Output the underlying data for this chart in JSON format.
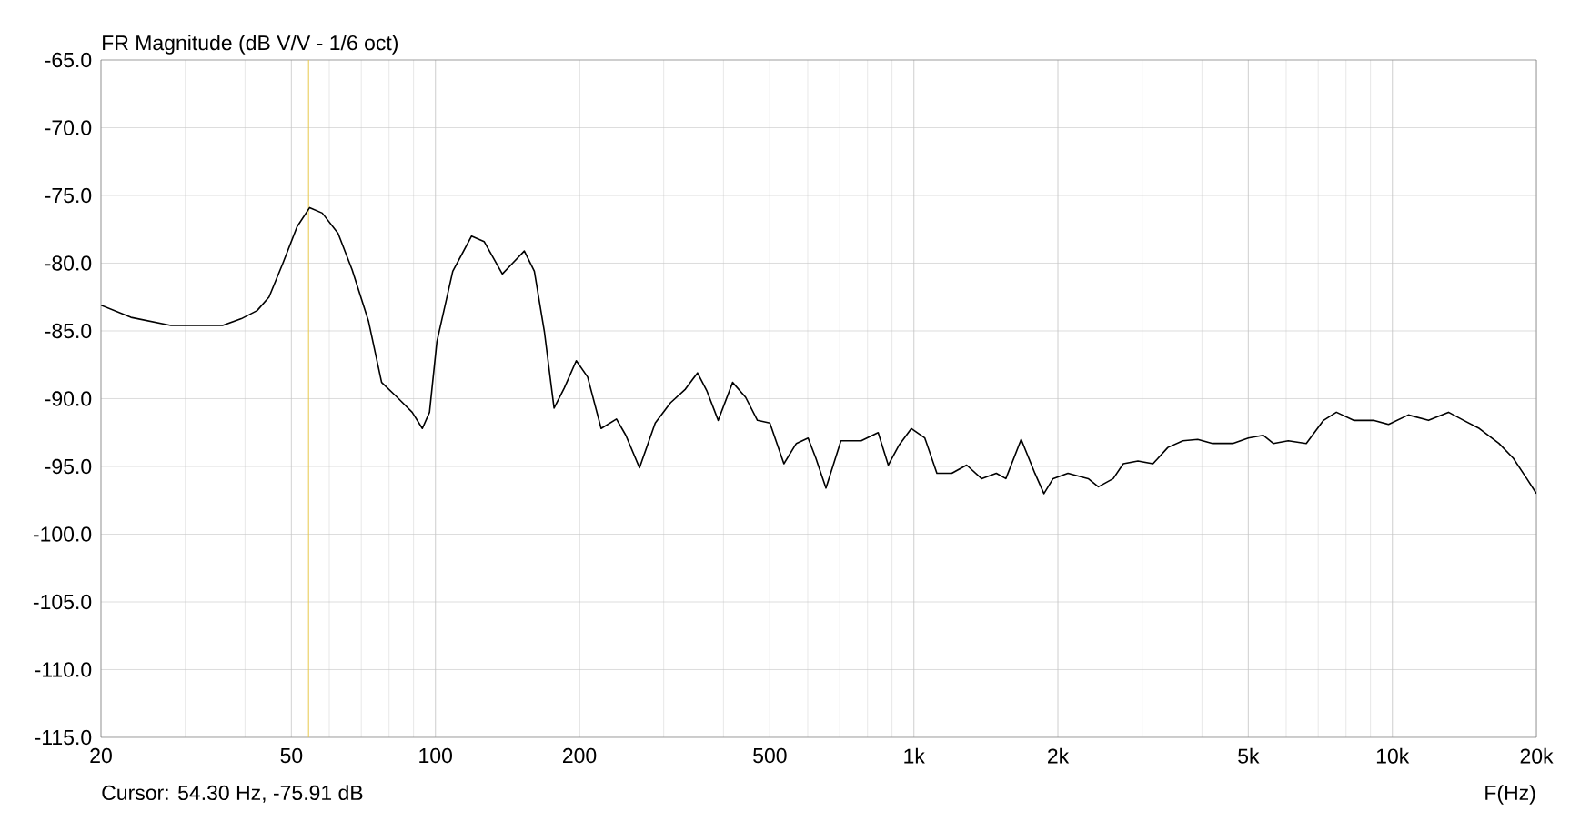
{
  "chart_data": {
    "type": "line",
    "title": "FR Magnitude (dB V/V - 1/6 oct)",
    "xlabel": "F(Hz)",
    "annotations": [
      "Cursor: 54.30 Hz, -75.91 dB"
    ],
    "log": "x",
    "grid": true,
    "xlim": [
      20,
      20000
    ],
    "ylim": [
      -115,
      -65
    ],
    "xticks": [
      20,
      50,
      100,
      200,
      500,
      {
        "value": 1000,
        "label": "1k"
      },
      {
        "value": 2000,
        "label": "2k"
      },
      {
        "value": 5000,
        "label": "5k"
      },
      {
        "value": 10000,
        "label": "10k"
      },
      {
        "value": 20000,
        "label": "20k"
      }
    ],
    "yticks": [
      {
        "value": -65,
        "label": "-65.0"
      },
      {
        "value": -70,
        "label": "-70.0"
      },
      {
        "value": -75,
        "label": "-75.0"
      },
      {
        "value": -80,
        "label": "-80.0"
      },
      {
        "value": -85,
        "label": "-85.0"
      },
      {
        "value": -90,
        "label": "-90.0"
      },
      {
        "value": -95,
        "label": "-95.0"
      },
      {
        "value": -100,
        "label": "-100.0"
      },
      {
        "value": -105,
        "label": "-105.0"
      },
      {
        "value": -110,
        "label": "-110.0"
      },
      {
        "value": -115,
        "label": "-115.0"
      }
    ],
    "ref_lines": [
      {
        "axis": "x",
        "value": 54.3,
        "color": "#e8c84a"
      }
    ],
    "x": [
      20,
      23.1,
      28,
      35.9,
      39.3,
      42.4,
      44.9,
      48,
      51.4,
      54.6,
      58,
      62.6,
      67,
      72.5,
      77.2,
      83.2,
      89.4,
      93.9,
      97.2,
      100.7,
      108.7,
      119,
      126.4,
      138,
      145,
      153.4,
      161,
      169,
      177,
      186,
      197,
      208,
      222,
      239,
      250,
      267,
      288,
      310,
      333,
      353,
      369,
      390,
      418,
      445,
      471,
      500,
      535,
      568,
      601,
      624,
      655,
      704,
      776,
      842,
      884,
      932,
      988,
      1054,
      1117,
      1200,
      1289,
      1385,
      1487,
      1557,
      1676,
      1790,
      1870,
      1954,
      2099,
      2314,
      2430,
      2610,
      2740,
      2940,
      3160,
      3395,
      3650,
      3920,
      4210,
      4640,
      5000,
      5370,
      5640,
      6060,
      6610,
      7180,
      7640,
      8300,
      9130,
      9820,
      10800,
      11900,
      13100,
      14100,
      15200,
      16700,
      17900,
      19100,
      20000
    ],
    "series": [
      {
        "color": "#000000",
        "values": [
          -83.1,
          -84.0,
          -84.6,
          -84.6,
          -84.1,
          -83.5,
          -82.5,
          -80.0,
          -77.3,
          -75.9,
          -76.3,
          -77.8,
          -80.5,
          -84.3,
          -88.8,
          -89.9,
          -91.0,
          -92.2,
          -91.0,
          -85.8,
          -80.6,
          -78.0,
          -78.4,
          -80.8,
          -80.0,
          -79.1,
          -80.6,
          -85.1,
          -90.7,
          -89.2,
          -87.2,
          -88.4,
          -92.2,
          -91.5,
          -92.7,
          -95.1,
          -91.8,
          -90.3,
          -89.3,
          -88.1,
          -89.4,
          -91.6,
          -88.8,
          -89.9,
          -91.6,
          -91.8,
          -94.8,
          -93.3,
          -92.9,
          -94.4,
          -96.6,
          -93.1,
          -93.1,
          -92.5,
          -94.9,
          -93.4,
          -92.2,
          -92.9,
          -95.5,
          -95.5,
          -94.9,
          -95.9,
          -95.5,
          -95.9,
          -93.0,
          -95.5,
          -97.0,
          -95.9,
          -95.5,
          -95.9,
          -96.5,
          -95.9,
          -94.8,
          -94.6,
          -94.8,
          -93.6,
          -93.1,
          -93.0,
          -93.3,
          -93.3,
          -92.9,
          -92.7,
          -93.3,
          -93.1,
          -93.3,
          -91.6,
          -91.0,
          -91.6,
          -91.6,
          -91.9,
          -91.2,
          -91.6,
          -91.0,
          -91.6,
          -92.2,
          -93.3,
          -94.4,
          -95.9,
          -97.0
        ]
      }
    ]
  }
}
